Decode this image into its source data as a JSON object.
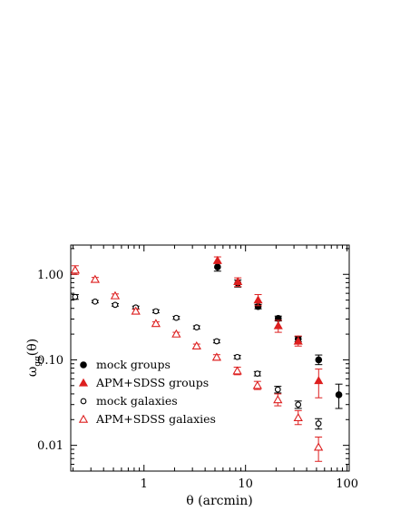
{
  "chart_data": {
    "type": "scatter",
    "title": "",
    "xlabel": "θ (arcmin)",
    "ylabel_main": "ω",
    "ylabel_sub": "gg",
    "ylabel_tail": "(θ)",
    "x_scale": "log",
    "y_scale": "log",
    "xlim": [
      0.19,
      105
    ],
    "ylim": [
      0.005,
      2.2
    ],
    "x_ticks": [
      {
        "value": 1,
        "label": "1"
      },
      {
        "value": 10,
        "label": "10"
      },
      {
        "value": 100,
        "label": "100"
      }
    ],
    "y_ticks": [
      {
        "value": 0.01,
        "label": "0.01"
      },
      {
        "value": 0.1,
        "label": "0.10"
      },
      {
        "value": 1,
        "label": "1.00"
      }
    ],
    "grid": false,
    "legend_position": "bottom-left",
    "series": [
      {
        "name": "mock groups",
        "marker": "filled-circle",
        "color": "#000000",
        "points": [
          {
            "x": 5.3,
            "y": 1.22,
            "lo": 1.09,
            "hi": 1.36
          },
          {
            "x": 8.4,
            "y": 0.79,
            "lo": 0.71,
            "hi": 0.86
          },
          {
            "x": 13.3,
            "y": 0.42,
            "lo": 0.395,
            "hi": 0.445
          },
          {
            "x": 21.0,
            "y": 0.305,
            "lo": 0.285,
            "hi": 0.325
          },
          {
            "x": 33.0,
            "y": 0.175,
            "lo": 0.163,
            "hi": 0.187
          },
          {
            "x": 52.5,
            "y": 0.1,
            "lo": 0.088,
            "hi": 0.114
          },
          {
            "x": 83.0,
            "y": 0.039,
            "lo": 0.027,
            "hi": 0.052
          }
        ]
      },
      {
        "name": "APM+SDSS groups",
        "marker": "filled-triangle",
        "color": "#dd1f1f",
        "points": [
          {
            "x": 5.3,
            "y": 1.45,
            "lo": 1.34,
            "hi": 1.6
          },
          {
            "x": 8.4,
            "y": 0.82,
            "lo": 0.72,
            "hi": 0.91
          },
          {
            "x": 13.3,
            "y": 0.5,
            "lo": 0.43,
            "hi": 0.58
          },
          {
            "x": 21.0,
            "y": 0.25,
            "lo": 0.21,
            "hi": 0.29
          },
          {
            "x": 33.0,
            "y": 0.165,
            "lo": 0.145,
            "hi": 0.19
          },
          {
            "x": 52.5,
            "y": 0.057,
            "lo": 0.036,
            "hi": 0.078
          }
        ]
      },
      {
        "name": "mock galaxies",
        "marker": "open-circle",
        "color": "#000000",
        "points": [
          {
            "x": 0.21,
            "y": 0.545,
            "lo": 0.51,
            "hi": 0.58
          },
          {
            "x": 0.33,
            "y": 0.48,
            "lo": 0.465,
            "hi": 0.495
          },
          {
            "x": 0.52,
            "y": 0.44,
            "lo": 0.425,
            "hi": 0.455
          },
          {
            "x": 0.83,
            "y": 0.41,
            "lo": 0.395,
            "hi": 0.425
          },
          {
            "x": 1.31,
            "y": 0.37,
            "lo": 0.355,
            "hi": 0.385
          },
          {
            "x": 2.08,
            "y": 0.31,
            "lo": 0.298,
            "hi": 0.322
          },
          {
            "x": 3.3,
            "y": 0.24,
            "lo": 0.23,
            "hi": 0.25
          },
          {
            "x": 5.2,
            "y": 0.165,
            "lo": 0.158,
            "hi": 0.172
          },
          {
            "x": 8.3,
            "y": 0.108,
            "lo": 0.103,
            "hi": 0.113
          },
          {
            "x": 13.1,
            "y": 0.069,
            "lo": 0.065,
            "hi": 0.073
          },
          {
            "x": 20.8,
            "y": 0.045,
            "lo": 0.041,
            "hi": 0.049
          },
          {
            "x": 33.0,
            "y": 0.03,
            "lo": 0.027,
            "hi": 0.033
          },
          {
            "x": 52.3,
            "y": 0.018,
            "lo": 0.0155,
            "hi": 0.0205
          }
        ]
      },
      {
        "name": "APM+SDSS galaxies",
        "marker": "open-triangle",
        "color": "#dd1f1f",
        "points": [
          {
            "x": 0.21,
            "y": 1.12,
            "lo": 1.0,
            "hi": 1.26
          },
          {
            "x": 0.33,
            "y": 0.87,
            "lo": 0.82,
            "hi": 0.92
          },
          {
            "x": 0.52,
            "y": 0.56,
            "lo": 0.53,
            "hi": 0.59
          },
          {
            "x": 0.83,
            "y": 0.37,
            "lo": 0.35,
            "hi": 0.39
          },
          {
            "x": 1.31,
            "y": 0.265,
            "lo": 0.252,
            "hi": 0.278
          },
          {
            "x": 2.08,
            "y": 0.2,
            "lo": 0.19,
            "hi": 0.21
          },
          {
            "x": 3.3,
            "y": 0.145,
            "lo": 0.137,
            "hi": 0.153
          },
          {
            "x": 5.2,
            "y": 0.107,
            "lo": 0.099,
            "hi": 0.115
          },
          {
            "x": 8.3,
            "y": 0.074,
            "lo": 0.067,
            "hi": 0.082
          },
          {
            "x": 13.1,
            "y": 0.05,
            "lo": 0.045,
            "hi": 0.056
          },
          {
            "x": 20.8,
            "y": 0.034,
            "lo": 0.029,
            "hi": 0.04
          },
          {
            "x": 33.0,
            "y": 0.021,
            "lo": 0.0175,
            "hi": 0.0255
          },
          {
            "x": 52.3,
            "y": 0.0095,
            "lo": 0.0065,
            "hi": 0.0125
          }
        ]
      }
    ]
  }
}
